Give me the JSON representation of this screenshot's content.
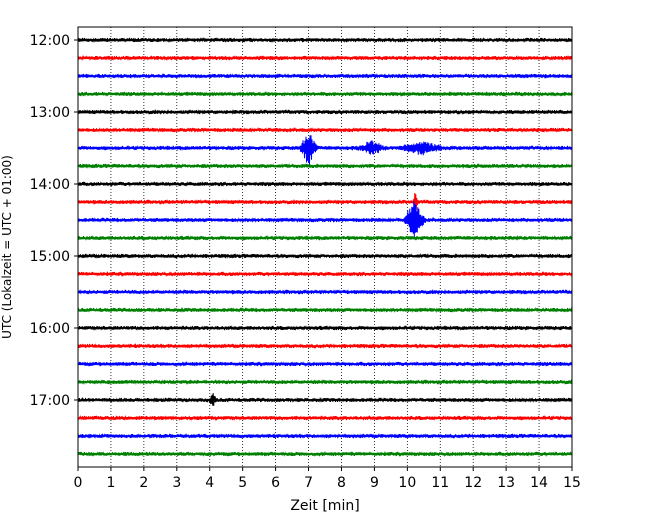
{
  "chart_data": {
    "type": "line",
    "title": "",
    "xlabel": "Zeit  [min]",
    "ylabel": "UTC (Lokalzeit = UTC + 01:00)",
    "xlim": [
      0,
      15
    ],
    "x_ticks": [
      0,
      1,
      2,
      3,
      4,
      5,
      6,
      7,
      8,
      9,
      10,
      11,
      12,
      13,
      14,
      15
    ],
    "y_tick_labels": [
      "12:00",
      "13:00",
      "14:00",
      "15:00",
      "16:00",
      "17:00"
    ],
    "grid": "vertical dotted lines at each minute",
    "trace_interval_minutes": 15,
    "trace_start_times_utc": [
      "12:00",
      "12:15",
      "12:30",
      "12:45",
      "13:00",
      "13:15",
      "13:30",
      "13:45",
      "14:00",
      "14:15",
      "14:30",
      "14:45",
      "15:00",
      "15:15",
      "15:30",
      "15:45",
      "16:00",
      "16:15",
      "16:30",
      "16:45",
      "17:00",
      "17:15",
      "17:30",
      "17:45"
    ],
    "trace_color_cycle": [
      "#000000",
      "#ff0000",
      "#0000ff",
      "#008000"
    ],
    "events": [
      {
        "trace": "13:30",
        "start_min": 6.7,
        "end_min": 7.3,
        "peak_min": 7.0,
        "amplitude": "large"
      },
      {
        "trace": "13:30",
        "start_min": 8.4,
        "end_min": 9.4,
        "peak_min": 8.9,
        "amplitude": "small"
      },
      {
        "trace": "13:30",
        "start_min": 9.6,
        "end_min": 11.2,
        "peak_min": 10.4,
        "amplitude": "small"
      },
      {
        "trace": "14:15",
        "start_min": 10.15,
        "end_min": 10.35,
        "peak_min": 10.25,
        "amplitude": "spike"
      },
      {
        "trace": "14:30",
        "start_min": 9.9,
        "end_min": 10.7,
        "peak_min": 10.2,
        "amplitude": "large"
      },
      {
        "trace": "17:00",
        "start_min": 4.0,
        "end_min": 4.25,
        "peak_min": 4.1,
        "amplitude": "small"
      }
    ]
  }
}
